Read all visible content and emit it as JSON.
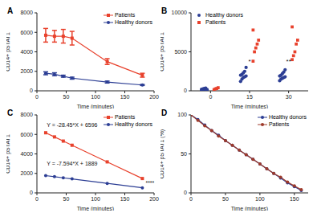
{
  "chart_data": [
    {
      "title": "A",
      "type": "line",
      "x_label": "Time (minutes)",
      "y_label": "CD14+ pSTAT1",
      "xlim": [
        0,
        200
      ],
      "xticks": [
        0,
        50,
        100,
        150,
        200
      ],
      "ylim": [
        0,
        8000
      ],
      "yticks": [
        0,
        2000,
        4000,
        6000,
        8000
      ],
      "legend": "upper right",
      "series": [
        {
          "name": "Patients",
          "color": "#e8412c",
          "marker": "square",
          "x": [
            15,
            30,
            45,
            60,
            120,
            180
          ],
          "values": [
            5700,
            5600,
            5600,
            5400,
            3000,
            1600
          ],
          "errors": [
            700,
            600,
            700,
            700,
            300,
            200
          ]
        },
        {
          "name": "Healthy donors",
          "color": "#2c3e94",
          "marker": "circle",
          "x": [
            15,
            30,
            45,
            60,
            120,
            180
          ],
          "values": [
            1800,
            1700,
            1500,
            1300,
            900,
            600
          ],
          "errors": [
            150,
            150,
            100,
            100,
            100,
            50
          ]
        }
      ]
    },
    {
      "title": "B",
      "type": "scatter",
      "x_label": "Time (minutes)",
      "y_label": "CD14+ pSTAT1",
      "categories": [
        "0",
        "15",
        "30"
      ],
      "ylim": [
        0,
        10000
      ],
      "yticks": [
        0,
        5000,
        10000
      ],
      "legend": "upper left",
      "series": [
        {
          "name": "Healthy donors",
          "color": "#2c3e94",
          "marker": "circle",
          "values": [
            [
              50,
              100,
              120,
              150,
              180,
              200,
              250,
              300,
              350,
              100
            ],
            [
              1200,
              1500,
              1700,
              1800,
              1900,
              2000,
              2100,
              2300,
              2500,
              3000
            ],
            [
              1300,
              1500,
              1600,
              1700,
              1800,
              1900,
              2000,
              2200,
              2400,
              2700
            ]
          ]
        },
        {
          "name": "Patients",
          "color": "#e8412c",
          "marker": "square",
          "values": [
            [
              150,
              250,
              300,
              400
            ],
            [
              3800,
              5000,
              5500,
              6000,
              6500,
              7800
            ],
            [
              4000,
              4500,
              5000,
              6000,
              6500,
              8200
            ]
          ]
        }
      ],
      "annotations": [
        {
          "text": "*",
          "category": "15",
          "y": 3800
        },
        {
          "text": "**",
          "category": "30",
          "y": 3800
        }
      ]
    },
    {
      "title": "C",
      "type": "line",
      "x_label": "Time (minutes)",
      "y_label": "CD14+ pSTAT1",
      "xlim": [
        0,
        200
      ],
      "xticks": [
        0,
        50,
        100,
        150,
        200
      ],
      "ylim": [
        0,
        8000
      ],
      "yticks": [
        0,
        2000,
        4000,
        6000,
        8000
      ],
      "legend": "upper right",
      "series": [
        {
          "name": "Patients",
          "color": "#e8412c",
          "marker": "square",
          "x": [
            15,
            30,
            45,
            60,
            120,
            180
          ],
          "values": [
            6169,
            5743,
            5316,
            4889,
            3182,
            1475
          ]
        },
        {
          "name": "Healthy donors",
          "color": "#2c3e94",
          "marker": "circle",
          "x": [
            15,
            30,
            45,
            60,
            120,
            180
          ],
          "values": [
            1775,
            1661,
            1547,
            1433,
            978,
            522
          ]
        }
      ],
      "annotations": [
        {
          "text": "Y = -28.45*X + 6596",
          "x": 60,
          "y": 7000
        },
        {
          "text": "Y = -7.594*X + 1889",
          "x": 60,
          "y": 3000
        },
        {
          "text": "****",
          "x": 193,
          "y": 1000
        }
      ]
    },
    {
      "title": "D",
      "type": "line",
      "x_label": "Time (minutes)",
      "y_label": "CD14+ pSTAT1 (%)",
      "xlim": [
        0,
        170
      ],
      "xticks": [
        0,
        50,
        100,
        150
      ],
      "ylim": [
        0,
        100
      ],
      "yticks": [
        0,
        50,
        100
      ],
      "legend": "upper right",
      "series": [
        {
          "name": "Healthy donors",
          "color": "#2c3e94",
          "marker": "circle",
          "x": [
            0,
            10,
            20,
            30,
            40,
            50,
            60,
            70,
            80,
            90,
            100,
            110,
            120,
            130,
            140,
            150,
            160
          ],
          "values": [
            100,
            94,
            87,
            80,
            74,
            67,
            61,
            55,
            49,
            43,
            37,
            31,
            25,
            19,
            13,
            8,
            3
          ]
        },
        {
          "name": "Patients",
          "color": "#9e3a2a",
          "marker": "circle",
          "x": [
            0,
            10,
            20,
            30,
            40,
            50,
            60,
            70,
            80,
            90,
            100,
            110,
            120,
            130,
            140,
            150,
            160
          ],
          "values": [
            100,
            93,
            86,
            80,
            73,
            67,
            61,
            55,
            49,
            43,
            37,
            31,
            25,
            20,
            14,
            9,
            4
          ]
        }
      ]
    }
  ]
}
